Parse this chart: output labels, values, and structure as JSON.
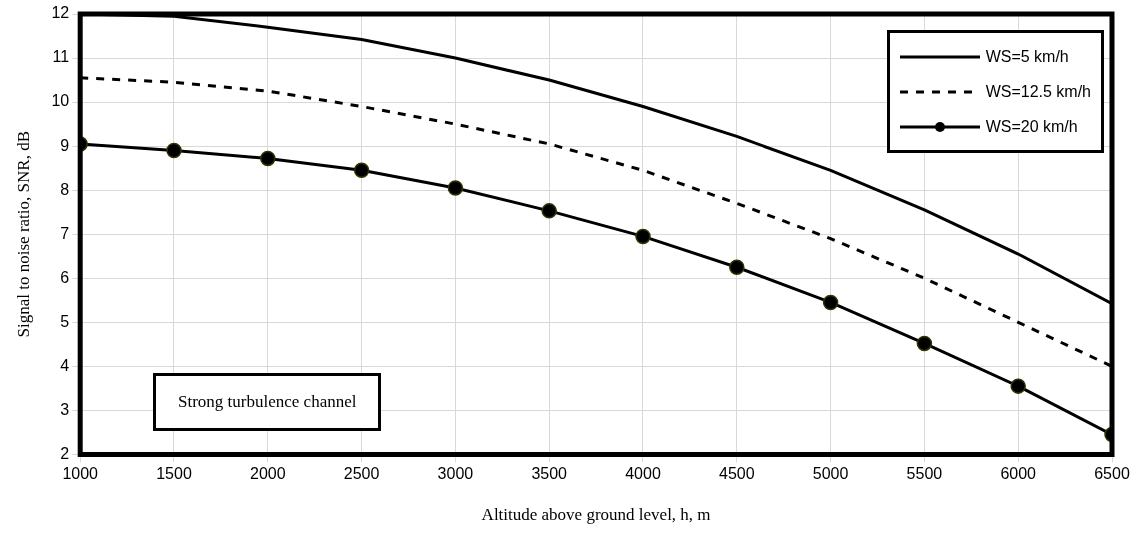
{
  "chart_data": {
    "type": "line",
    "xlabel": "Altitude above ground level, h, m",
    "ylabel": "Signal to noise ratio, SNR, dB",
    "x": [
      1000,
      1500,
      2000,
      2500,
      3000,
      3500,
      4000,
      4500,
      5000,
      5500,
      6000,
      6500
    ],
    "series": [
      {
        "name": "WS=5 km/h",
        "color": "#000000",
        "line_style": "solid",
        "marker": "none",
        "values": [
          12.0,
          11.95,
          11.7,
          11.42,
          11.0,
          10.5,
          9.9,
          9.22,
          8.45,
          7.55,
          6.55,
          5.42
        ]
      },
      {
        "name": "WS=12.5 km/h",
        "color": "#000000",
        "line_style": "dashed",
        "marker": "none",
        "values": [
          10.55,
          10.45,
          10.25,
          9.9,
          9.5,
          9.05,
          8.45,
          7.7,
          6.9,
          6.0,
          5.0,
          4.0
        ]
      },
      {
        "name": "WS=20 km/h",
        "color": "#000000",
        "line_style": "solid",
        "marker": "circle",
        "values": [
          9.05,
          8.9,
          8.72,
          8.45,
          8.05,
          7.53,
          6.95,
          6.25,
          5.45,
          4.52,
          3.55,
          2.45
        ]
      }
    ],
    "xlim": [
      1000,
      6500
    ],
    "xticks": [
      1000,
      1500,
      2000,
      2500,
      3000,
      3500,
      4000,
      4500,
      5000,
      5500,
      6000,
      6500
    ],
    "ylim": [
      2,
      12
    ],
    "yticks": [
      2,
      3,
      4,
      5,
      6,
      7,
      8,
      9,
      10,
      11,
      12
    ],
    "grid": true,
    "legend": "top right",
    "annotations": [
      "Strong turbulence channel"
    ]
  }
}
